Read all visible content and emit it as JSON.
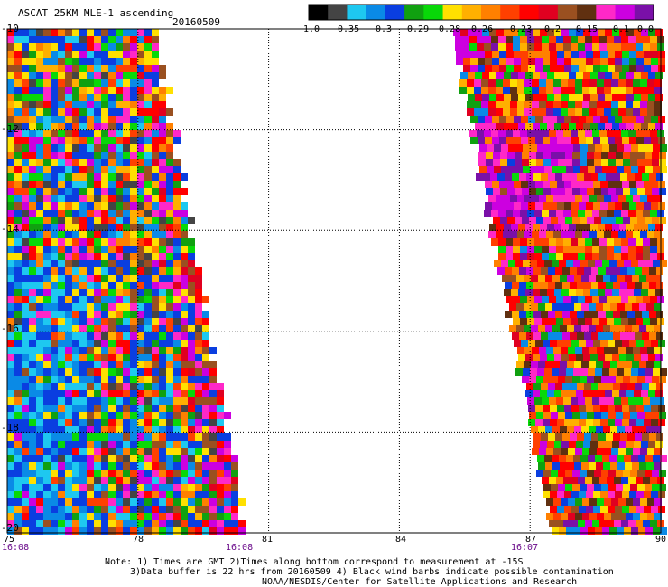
{
  "header": {
    "title": "ASCAT 25KM MLE-1 ascending",
    "date": "20160509"
  },
  "colorbar": {
    "labels": [
      "-1.0",
      "-0.35",
      "-0.3",
      "-0.29",
      "-0.28",
      "-0.26",
      "-0.23",
      "-0.2",
      "-0.15",
      "-0.1",
      "0.0"
    ],
    "colors": [
      "#000000",
      "#444444",
      "#1ec8f0",
      "#0a8ae6",
      "#0a3ee0",
      "#10a010",
      "#08d808",
      "#ffe000",
      "#ffb000",
      "#ff8000",
      "#ff4000",
      "#ff0000",
      "#e00020",
      "#9a5020",
      "#603010",
      "#ff28c8",
      "#cc00e0",
      "#7a10a8"
    ]
  },
  "axes": {
    "x_ticks": [
      "75",
      "78",
      "81",
      "84",
      "87",
      "90"
    ],
    "y_ticks": [
      "-10",
      "-12",
      "-14",
      "-16",
      "-18",
      "-20"
    ],
    "x_range": [
      75,
      90
    ],
    "y_range": [
      -20,
      -10
    ]
  },
  "swaths": {
    "left": {
      "time_start": "16:08",
      "time_end": "16:08"
    },
    "right": {
      "time_start": "16:07"
    }
  },
  "notes": {
    "line1": "Note: 1) Times are GMT 2)Times along bottom correspond to measurement at -15S",
    "line2": "3)Data buffer is 22 hrs from 20160509 4) Black wind barbs indicate possible contamination",
    "line3": "NOAA/NESDIS/Center for Satellite Applications and Research"
  }
}
